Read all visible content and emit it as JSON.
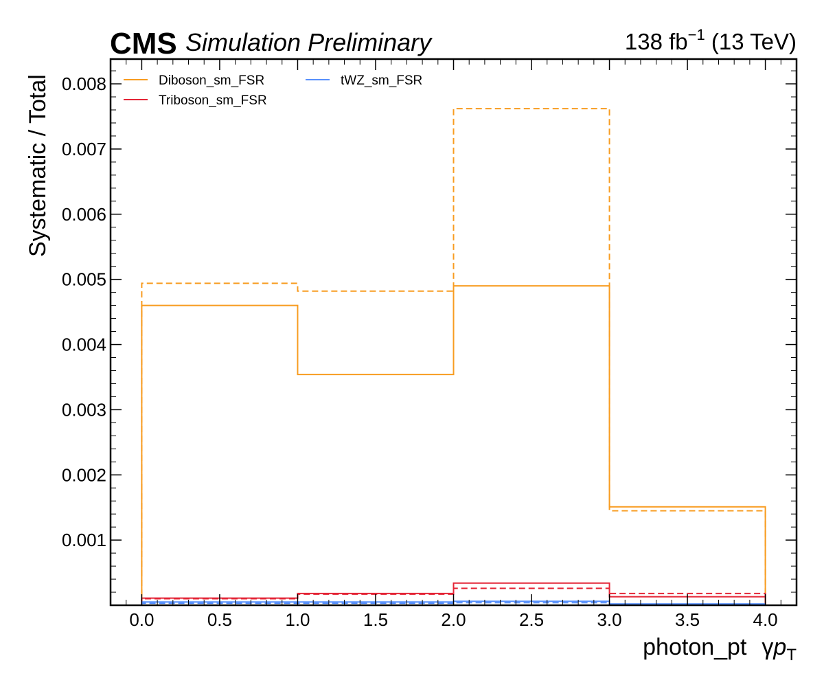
{
  "header": {
    "experiment": "CMS",
    "status": "Simulation Preliminary",
    "lumi_value": "138 fb",
    "lumi_exp": "−1",
    "energy": " (13 TeV)"
  },
  "chart_data": {
    "type": "line",
    "histtype": "step",
    "xlabel_main": "photon_pt",
    "xlabel_symbol": "γ",
    "xlabel_var": "p",
    "xlabel_sub": "T",
    "ylabel": "Systematic / Total",
    "xlim": [
      -0.2,
      4.2
    ],
    "ylim": [
      0.0,
      0.00838
    ],
    "x_ticks": [
      0.0,
      0.5,
      1.0,
      1.5,
      2.0,
      2.5,
      3.0,
      3.5,
      4.0
    ],
    "x_tick_labels": [
      "0.0",
      "0.5",
      "1.0",
      "1.5",
      "2.0",
      "2.5",
      "3.0",
      "3.5",
      "4.0"
    ],
    "y_ticks": [
      0.001,
      0.002,
      0.003,
      0.004,
      0.005,
      0.006,
      0.007,
      0.008
    ],
    "y_tick_labels": [
      "0.001",
      "0.002",
      "0.003",
      "0.004",
      "0.005",
      "0.006",
      "0.007",
      "0.008"
    ],
    "bin_edges": [
      0,
      1,
      2,
      3,
      4
    ],
    "legend_position": "top-left",
    "series": [
      {
        "name": "Diboson_sm_FSR",
        "color": "#f89c20",
        "style": "solid",
        "values": [
          0.0046,
          0.00354,
          0.0049,
          0.00151
        ]
      },
      {
        "name": "",
        "color": "#f89c20",
        "style": "dashed",
        "values": [
          0.00494,
          0.00482,
          0.00762,
          0.00145
        ]
      },
      {
        "name": "Triboson_sm_FSR",
        "color": "#e42536",
        "style": "solid",
        "values": [
          0.00011,
          0.00018,
          0.00034,
          0.00013
        ]
      },
      {
        "name": "",
        "color": "#e42536",
        "style": "dashed",
        "values": [
          0.0001,
          0.00017,
          0.00026,
          0.00018
        ]
      },
      {
        "name": "tWZ_sm_FSR",
        "color": "#5790fc",
        "style": "solid",
        "values": [
          5e-05,
          5e-05,
          6e-05,
          2e-05
        ]
      },
      {
        "name": "",
        "color": "#5790fc",
        "style": "dashed",
        "values": [
          3e-05,
          3e-05,
          4e-05,
          1e-05
        ]
      }
    ]
  }
}
